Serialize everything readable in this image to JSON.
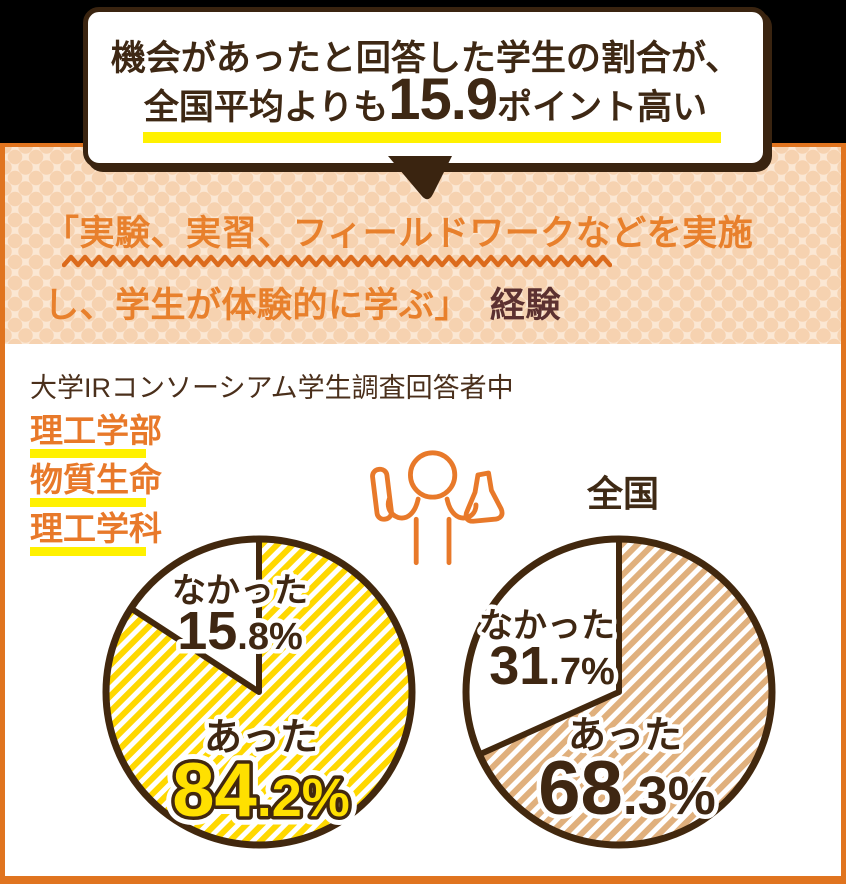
{
  "colors": {
    "background_black": "#000000",
    "dark_brown": "#3E2814",
    "pie_outline_brown": "#42280E",
    "orange_text": "#E8802C",
    "frame_orange": "#E0741F",
    "wavy_orange": "#DC6B1C",
    "highlight_yellow": "#FFF100",
    "stripe_yellow": "#FFD800",
    "stripe_tan": "#E0B07D",
    "band_background": "#FBE7D3",
    "band_dot": "#F6D2B0",
    "keiken_maroon": "#5C3131"
  },
  "callout": {
    "line1": "機会があったと回答した学生の割合が、",
    "line2_prefix": "全国平均よりも",
    "line2_number": "15.9",
    "line2_suffix": "ポイント高い"
  },
  "banner": {
    "line1": "「実験、実習、フィールドワークなどを実施",
    "line2_quote": "し、学生が体験的に学ぶ」",
    "line2_suffix": "経験"
  },
  "survey": {
    "caption": "大学IRコンソーシアム学生調査回答者中",
    "group_labels": [
      "理工学部",
      "物質生命",
      "理工学科"
    ],
    "national_label": "全国"
  },
  "chart_data": [
    {
      "type": "pie",
      "title": "理工学部 物質生命理工学科",
      "slices": [
        {
          "label": "あった",
          "value": 84.2,
          "display_int": "84",
          "display_frac": ".2%",
          "style": "yellow-stripes"
        },
        {
          "label": "なかった",
          "value": 15.8,
          "display_int": "15",
          "display_frac": ".8%",
          "style": "white"
        }
      ],
      "start_angle": "top",
      "direction": "clockwise",
      "legend_position": "none"
    },
    {
      "type": "pie",
      "title": "全国",
      "slices": [
        {
          "label": "あった",
          "value": 68.3,
          "display_int": "68",
          "display_frac": ".3%",
          "style": "tan-stripes"
        },
        {
          "label": "なかった",
          "value": 31.7,
          "display_int": "31",
          "display_frac": ".7%",
          "style": "white"
        }
      ],
      "start_angle": "top",
      "direction": "clockwise",
      "legend_position": "none"
    }
  ]
}
